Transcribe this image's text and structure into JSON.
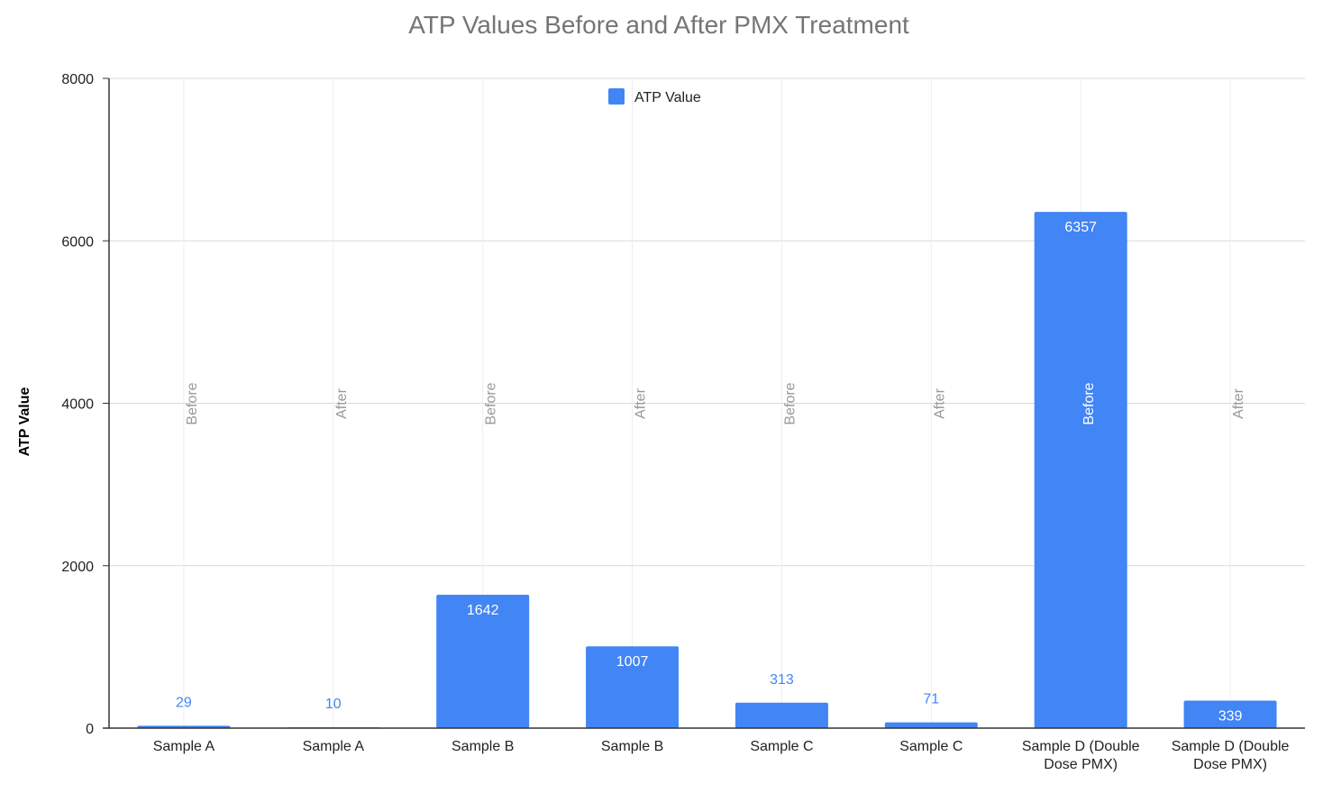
{
  "chart_data": {
    "type": "bar",
    "title": "ATP Values Before and After PMX Treatment",
    "xlabel": "",
    "ylabel": "ATP Value",
    "ylim": [
      0,
      8000
    ],
    "yticks": [
      0,
      2000,
      4000,
      6000,
      8000
    ],
    "grid": true,
    "legend": {
      "position": "top-center",
      "entries": [
        "ATP Value"
      ]
    },
    "categories": [
      "Sample A",
      "Sample A",
      "Sample B",
      "Sample B",
      "Sample C",
      "Sample C",
      "Sample D (Double Dose PMX)",
      "Sample D (Double Dose PMX)"
    ],
    "category_lines": [
      [
        "Sample A"
      ],
      [
        "Sample A"
      ],
      [
        "Sample B"
      ],
      [
        "Sample B"
      ],
      [
        "Sample C"
      ],
      [
        "Sample C"
      ],
      [
        "Sample D (Double",
        "Dose PMX)"
      ],
      [
        "Sample D (Double",
        "Dose PMX)"
      ]
    ],
    "annotations": [
      "Before",
      "After",
      "Before",
      "After",
      "Before",
      "After",
      "Before",
      "After"
    ],
    "series": [
      {
        "name": "ATP Value",
        "values": [
          29,
          10,
          1642,
          1007,
          313,
          71,
          6357,
          339
        ]
      }
    ],
    "colors": {
      "bar": "#4285f4",
      "label_inside": "#ffffff",
      "label_outside": "#4285f4",
      "annotation": "#999999",
      "grid": "#d9d9d9",
      "axis": "#333333"
    }
  }
}
